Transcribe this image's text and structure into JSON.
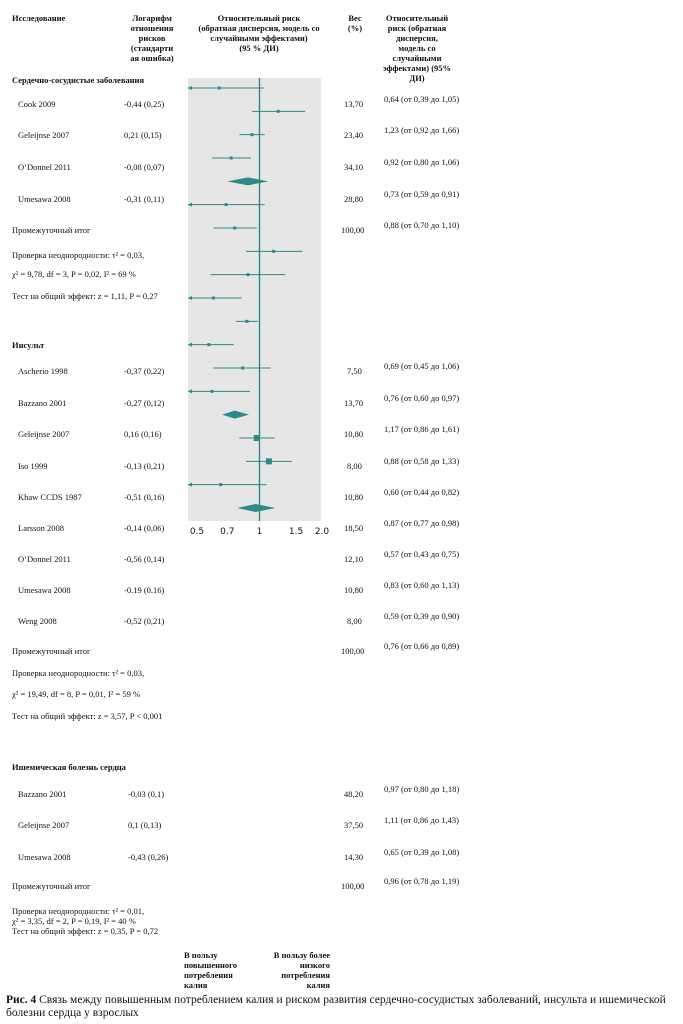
{
  "headers": {
    "study": "Исследование",
    "logrr": "Логарифм отношения рисков (стандартная ошибка)",
    "plot": "Относительный риск (обратная дисперсия, модель со случайными эффектами) (95 % ДИ)",
    "weight": "Вес (%)",
    "ci": "Относительный риск (обратная дисперсия, модель со случайными эффектами) (95% ДИ)"
  },
  "header_lines": {
    "logrr": [
      "Логарифм",
      "отношения",
      "рисков",
      "(стандарти",
      "ая ошибка)"
    ],
    "plot": [
      "Относительный риск",
      "(обратная дисперсия, модель со",
      "случайными эффектами)",
      "(95 % ДИ)"
    ],
    "weight": [
      "Вес",
      "(%)"
    ],
    "ci": [
      "Относительный",
      "риск (обратная",
      "дисперсия,",
      "модель со",
      "случайными",
      "эффектами) (95%",
      "ДИ)"
    ]
  },
  "sections": [
    {
      "title": "Сердечно-сосудистые заболевания",
      "rows": [
        {
          "study": "Cook 2009",
          "logrr": "-0,44 (0,25)",
          "weight": "13,70",
          "ci": "0,64 (от 0,39 до 1,05)"
        },
        {
          "study": "Geleijnse 2007",
          "logrr": "0,21 (0,15)",
          "weight": "23,40",
          "ci": "1,23 (от 0,92 до 1,66)"
        },
        {
          "study": "O’Donnel 2011",
          "logrr": "-0,08 (0,07)",
          "weight": "34,10",
          "ci": "0,92 (от 0,80 до 1,06)"
        },
        {
          "study": "Umesawa 2008",
          "logrr": "-0,31 (0,11)",
          "weight": "28,80",
          "ci": "0,73 (от 0,59 до 0,91)"
        }
      ],
      "subtotal": {
        "label": "Промежуточный итог",
        "weight": "100,00",
        "ci": "0,88 (от 0,70 до 1,10)"
      },
      "stats": [
        "Проверка неоднородности: τ² = 0,03,",
        "χ² = 9,78, df = 3, P = 0,02, I² = 69 %",
        "Тест на общий эффект: z = 1,11, P = 0,27"
      ]
    },
    {
      "title": "Инсульт",
      "rows": [
        {
          "study": "Ascherio 1998",
          "logrr": "-0,37 (0,22)",
          "weight": "7,50",
          "ci": "0,69 (от 0,45 до 1,06)"
        },
        {
          "study": "Bazzano 2001",
          "logrr": "-0,27 (0,12)",
          "weight": "13,70",
          "ci": "0,76 (от 0,60 до 0,97)"
        },
        {
          "study": "Geleijnse 2007",
          "logrr": "0,16 (0,16)",
          "weight": "10,80",
          "ci": "1,17 (от 0,86 до 1,61)"
        },
        {
          "study": "Iso 1999",
          "logrr": "-0,13 (0,21)",
          "weight": "8,00",
          "ci": "0,88 (от 0,58 до 1,33)"
        },
        {
          "study": "Khaw CCDS 1987",
          "logrr": "-0,51 (0,16)",
          "weight": "10,80",
          "ci": "0,60 (от 0,44 до 0,82)"
        },
        {
          "study": "Larsson 2008",
          "logrr": "-0,14 (0,06)",
          "weight": "18,50",
          "ci": "0,87 (от 0,77 до 0,98)"
        },
        {
          "study": "O’Donnel 2011",
          "logrr": "-0,56 (0,14)",
          "weight": "12,10",
          "ci": "0,57 (от 0,43 до 0,75)"
        },
        {
          "study": "Umesawa 2008",
          "logrr": "-0.19 (0.16)",
          "weight": "10,80",
          "ci": "0,83 (от 0,60 до 1,13)"
        },
        {
          "study": "Weng 2008",
          "logrr": "-0,52 (0,21)",
          "weight": "8,00",
          "ci": "0,59 (от 0,39 до 0,90)"
        }
      ],
      "subtotal": {
        "label": "Промежуточный итог",
        "weight": "100,00",
        "ci": "0,76 (от 0,66 до 0,89)"
      },
      "stats": [
        "Проверка неоднородности: τ² = 0,03,",
        "χ² = 19,49, df = 8, P = 0,01, I² = 59 %",
        "Тест на общий эффект: z = 3,57, P < 0,001"
      ]
    },
    {
      "title": "Ишемическая болезнь сердца",
      "rows": [
        {
          "study": "Bazzano 2001",
          "logrr": "-0,03 (0,1)",
          "weight": "48,20",
          "ci": "0,97 (от 0,80 до 1,18)"
        },
        {
          "study": "Geleijnse 2007",
          "logrr": "0,1 (0,13)",
          "weight": "37,50",
          "ci": "1,11 (от 0,86 до 1,43)"
        },
        {
          "study": "Umesawa 2008",
          "logrr": "-0,43 (0,26)",
          "weight": "14,30",
          "ci": "0,65 (от 0,39 до 1,08)"
        }
      ],
      "subtotal": {
        "label": "Промежуточный итог",
        "weight": "100,00",
        "ci": "0,96 (от 0,78 до 1,19)"
      },
      "stats": [
        "Проверка неоднородности: τ² = 0,01,",
        "χ² = 3,35, df = 2, P = 0,19, I² = 40 %",
        "Тест на общий эффект: z = 0,35, P = 0,72"
      ]
    }
  ],
  "bottom_labels": {
    "left": "В пользу повышенного потребления калия",
    "right": "В пользу более низкого потребления калия"
  },
  "bottom_label_lines": {
    "left": [
      "В пользу",
      "повышенного",
      "потребления",
      "калия"
    ],
    "right": [
      "В пользу более",
      "низкого",
      "потребления",
      "калия"
    ]
  },
  "caption": {
    "label": "Рис. 4",
    "text": " Связь между повышенным потреблением калия и риском развития сердечно-сосудистых заболеваний, инсульта и ишемической болезни сердца у взрослых"
  },
  "chart_data": {
    "type": "forest",
    "x_scale": "log",
    "x_ticks": [
      "0.5",
      "0.7",
      "1",
      "1.5",
      "2.0"
    ],
    "xlim": [
      0.5,
      2.0
    ],
    "reference_line": 1,
    "colors": {
      "mark": "#2e8a86",
      "panel": "#e6e6e6",
      "ref": "#2e8a86"
    },
    "marks": [
      {
        "type": "ci",
        "est": 0.64,
        "lo": 0.39,
        "hi": 1.05
      },
      {
        "type": "ci",
        "est": 1.23,
        "lo": 0.92,
        "hi": 1.66
      },
      {
        "type": "ci",
        "est": 0.92,
        "lo": 0.8,
        "hi": 1.06
      },
      {
        "type": "ci",
        "est": 0.73,
        "lo": 0.59,
        "hi": 0.91
      },
      {
        "type": "diamond",
        "est": 0.88,
        "lo": 0.7,
        "hi": 1.1
      },
      {
        "type": "ci",
        "est": 0.69,
        "lo": 0.45,
        "hi": 1.06
      },
      {
        "type": "ci",
        "est": 0.76,
        "lo": 0.6,
        "hi": 0.97
      },
      {
        "type": "ci",
        "est": 1.17,
        "lo": 0.86,
        "hi": 1.61
      },
      {
        "type": "ci",
        "est": 0.88,
        "lo": 0.58,
        "hi": 1.33
      },
      {
        "type": "ci",
        "est": 0.6,
        "lo": 0.44,
        "hi": 0.82
      },
      {
        "type": "ci",
        "est": 0.87,
        "lo": 0.77,
        "hi": 0.98
      },
      {
        "type": "ci",
        "est": 0.57,
        "lo": 0.43,
        "hi": 0.75
      },
      {
        "type": "ci",
        "est": 0.83,
        "lo": 0.6,
        "hi": 1.13
      },
      {
        "type": "ci",
        "est": 0.59,
        "lo": 0.39,
        "hi": 0.9
      },
      {
        "type": "diamond",
        "est": 0.76,
        "lo": 0.66,
        "hi": 0.89
      },
      {
        "type": "square",
        "est": 0.97,
        "lo": 0.8,
        "hi": 1.18
      },
      {
        "type": "square",
        "est": 1.11,
        "lo": 0.86,
        "hi": 1.43
      },
      {
        "type": "ci",
        "est": 0.65,
        "lo": 0.39,
        "hi": 1.08
      },
      {
        "type": "diamond",
        "est": 0.96,
        "lo": 0.78,
        "hi": 1.19
      }
    ]
  }
}
